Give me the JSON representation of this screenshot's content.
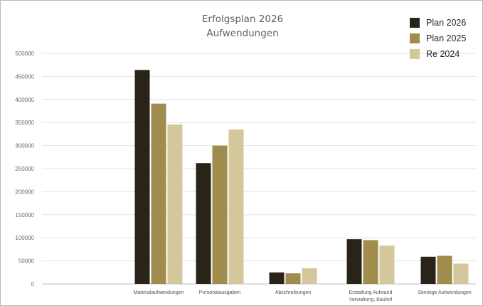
{
  "chart_data": {
    "type": "bar",
    "title": "Erfolgsplan 2026",
    "subtitle": "Aufwendungen",
    "categories": [
      [
        "Materialaufwendungen"
      ],
      [
        "Personalausgaben"
      ],
      [
        "Abschreibungen"
      ],
      [
        "Erstattung Aufwand",
        "Verwaltung, Bauhof"
      ],
      [
        "Sonstige Aufwendungen"
      ]
    ],
    "series": [
      {
        "name": "Plan 2026",
        "color": "#29231a",
        "values": [
          464000,
          262000,
          25000,
          97000,
          59000
        ]
      },
      {
        "name": "Plan 2025",
        "color": "#a08d4e",
        "values": [
          391000,
          300000,
          23000,
          95000,
          61000
        ]
      },
      {
        "name": "Re 2024",
        "color": "#d3c79b",
        "values": [
          346000,
          335000,
          34000,
          83000,
          44000
        ]
      }
    ],
    "yticks": [
      0,
      50000,
      100000,
      150000,
      200000,
      250000,
      300000,
      350000,
      400000,
      450000,
      500000
    ],
    "ylim": [
      0,
      500000
    ],
    "grid": true,
    "legend_position": "top-right"
  }
}
